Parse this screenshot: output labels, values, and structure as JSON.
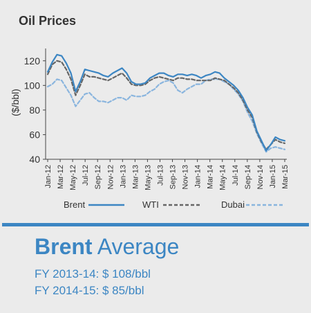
{
  "title": "Oil Prices",
  "chart_data": {
    "type": "line",
    "ylabel": "($/bbl)",
    "ylim": [
      40,
      130
    ],
    "yticks": [
      40,
      60,
      80,
      100,
      120
    ],
    "tick_labels": [
      "Jan-12",
      "Mar-12",
      "May-12",
      "Jul-12",
      "Sep-12",
      "Nov-12",
      "Jan-13",
      "Mar-13",
      "May-13",
      "Jul-13",
      "Sep-13",
      "Nov-13",
      "Jan-14",
      "Mar-14",
      "May-14",
      "Jul-14",
      "Sep-14",
      "Nov-14",
      "Jan-15",
      "Mar-15"
    ],
    "legend_position": "bottom",
    "series": [
      {
        "name": "Brent",
        "color": "#3c86c3",
        "style": "solid",
        "values": [
          111,
          119,
          125,
          124,
          118,
          110,
          95,
          103,
          113,
          112,
          111,
          110,
          108,
          107,
          110,
          112,
          114,
          110,
          103,
          101,
          101,
          102,
          106,
          108,
          110,
          110,
          108,
          107,
          109,
          109,
          108,
          109,
          108,
          106,
          108,
          109,
          111,
          110,
          106,
          103,
          100,
          96,
          90,
          82,
          76,
          63,
          55,
          47,
          52,
          58,
          56,
          55
        ]
      },
      {
        "name": "WTI",
        "color": "#666666",
        "style": "dashed",
        "values": [
          109,
          117,
          120,
          119,
          113,
          105,
          92,
          100,
          109,
          107,
          107,
          106,
          105,
          104,
          106,
          108,
          110,
          106,
          101,
          100,
          100,
          101,
          104,
          106,
          107,
          106,
          105,
          104,
          106,
          106,
          105,
          105,
          104,
          104,
          104,
          104,
          106,
          105,
          104,
          101,
          98,
          94,
          88,
          80,
          74,
          62,
          54,
          48,
          52,
          56,
          54,
          53
        ]
      },
      {
        "name": "Dubai",
        "color": "#8ab5de",
        "style": "dashed",
        "values": [
          99,
          101,
          105,
          104,
          98,
          92,
          83,
          88,
          93,
          94,
          90,
          87,
          87,
          86,
          88,
          90,
          90,
          88,
          92,
          91,
          91,
          92,
          95,
          97,
          101,
          103,
          104,
          102,
          96,
          94,
          97,
          99,
          101,
          101,
          104,
          105,
          105,
          105,
          103,
          101,
          97,
          93,
          87,
          78,
          71,
          61,
          53,
          46,
          49,
          50,
          49,
          48
        ]
      }
    ]
  },
  "average": {
    "label_bold": "Brent",
    "label_light": "Average",
    "lines": [
      "FY 2013-14: $ 108/bbl",
      "FY 2014-15: $ 85/bbl"
    ]
  }
}
